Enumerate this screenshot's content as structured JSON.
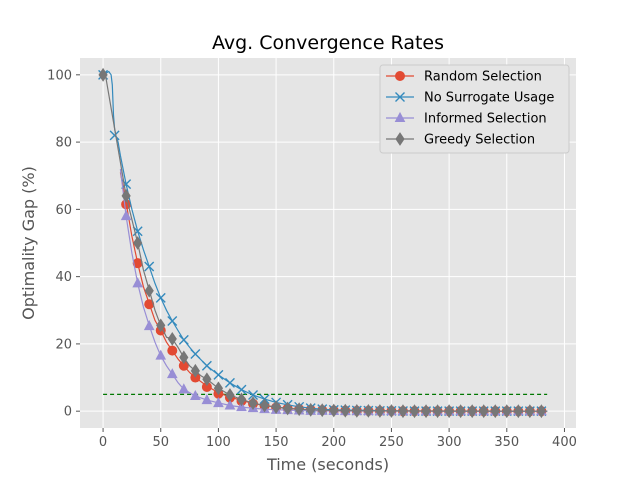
{
  "chart_data": {
    "type": "line",
    "title": "Avg. Convergence Rates",
    "xlabel": "Time (seconds)",
    "ylabel": "Optimality Gap (%)",
    "xlim": [
      -20,
      410
    ],
    "ylim": [
      -5,
      105
    ],
    "xticks": [
      0,
      50,
      100,
      150,
      200,
      250,
      300,
      350,
      400
    ],
    "yticks": [
      0,
      20,
      40,
      60,
      80,
      100
    ],
    "grid": true,
    "legend_position": "top-right",
    "threshold_line": {
      "y": 5,
      "x_range": [
        0,
        385
      ],
      "color": "#007700",
      "style": "dashed"
    },
    "series": [
      {
        "name": "Random Selection",
        "color": "#E24A33",
        "marker": "circle",
        "curve": [
          [
            15,
            71
          ],
          [
            20,
            62
          ],
          [
            25,
            52
          ],
          [
            30,
            44
          ],
          [
            35,
            37
          ],
          [
            40,
            32
          ],
          [
            45,
            27
          ],
          [
            50,
            24
          ],
          [
            55,
            20.5
          ],
          [
            60,
            18
          ],
          [
            65,
            15.5
          ],
          [
            70,
            13.5
          ],
          [
            75,
            11.5
          ],
          [
            80,
            10
          ],
          [
            90,
            7.5
          ],
          [
            100,
            5.5
          ],
          [
            110,
            4.2
          ],
          [
            120,
            3.2
          ],
          [
            130,
            2.3
          ],
          [
            140,
            1.7
          ],
          [
            150,
            1.2
          ],
          [
            160,
            0.9
          ],
          [
            170,
            0.6
          ],
          [
            180,
            0.4
          ],
          [
            190,
            0.3
          ],
          [
            200,
            0.2
          ],
          [
            250,
            0.1
          ],
          [
            300,
            0.05
          ],
          [
            385,
            0
          ]
        ],
        "marker_points": [
          [
            20,
            61.5
          ],
          [
            30,
            44
          ],
          [
            40,
            31.8
          ],
          [
            50,
            24
          ],
          [
            60,
            18
          ],
          [
            70,
            13.5
          ],
          [
            80,
            10
          ],
          [
            90,
            7.2
          ],
          [
            100,
            5.2
          ],
          [
            110,
            4
          ],
          [
            120,
            3
          ],
          [
            130,
            2.2
          ],
          [
            140,
            1.6
          ],
          [
            150,
            1.1
          ],
          [
            160,
            0.8
          ],
          [
            170,
            0.6
          ],
          [
            180,
            0.4
          ],
          [
            190,
            0.3
          ],
          [
            200,
            0.2
          ],
          [
            210,
            0.15
          ],
          [
            220,
            0.1
          ],
          [
            230,
            0.1
          ],
          [
            240,
            0.05
          ],
          [
            250,
            0.05
          ],
          [
            260,
            0
          ],
          [
            270,
            0
          ],
          [
            280,
            0
          ],
          [
            290,
            0
          ],
          [
            300,
            0
          ],
          [
            310,
            0
          ],
          [
            320,
            0
          ],
          [
            330,
            0
          ],
          [
            340,
            0
          ],
          [
            350,
            0
          ],
          [
            360,
            0
          ],
          [
            370,
            0
          ],
          [
            380,
            0
          ]
        ]
      },
      {
        "name": "No Surrogate Usage",
        "color": "#348ABD",
        "marker": "x",
        "curve": [
          [
            0,
            100
          ],
          [
            5,
            101
          ],
          [
            7,
            100
          ],
          [
            8,
            97
          ],
          [
            9,
            88
          ],
          [
            10,
            84
          ],
          [
            11,
            82
          ],
          [
            13,
            80
          ],
          [
            15,
            76
          ],
          [
            20,
            67.5
          ],
          [
            25,
            60
          ],
          [
            30,
            53.5
          ],
          [
            35,
            48
          ],
          [
            40,
            43
          ],
          [
            45,
            38
          ],
          [
            50,
            33.7
          ],
          [
            55,
            30
          ],
          [
            60,
            26.8
          ],
          [
            65,
            24
          ],
          [
            70,
            21.2
          ],
          [
            75,
            19
          ],
          [
            80,
            17
          ],
          [
            90,
            13.5
          ],
          [
            100,
            10.8
          ],
          [
            110,
            8.4
          ],
          [
            120,
            6.4
          ],
          [
            130,
            4.8
          ],
          [
            140,
            3.6
          ],
          [
            150,
            2.6
          ],
          [
            160,
            1.9
          ],
          [
            170,
            1.3
          ],
          [
            180,
            0.9
          ],
          [
            190,
            0.6
          ],
          [
            200,
            0.4
          ],
          [
            250,
            0.1
          ],
          [
            300,
            0
          ],
          [
            385,
            0
          ]
        ],
        "marker_points": [
          [
            0,
            100
          ],
          [
            10,
            82
          ],
          [
            20,
            67.5
          ],
          [
            30,
            53.5
          ],
          [
            40,
            43
          ],
          [
            50,
            33.7
          ],
          [
            60,
            26.8
          ],
          [
            70,
            21.2
          ],
          [
            80,
            17
          ],
          [
            90,
            13.5
          ],
          [
            100,
            10.8
          ],
          [
            110,
            8.4
          ],
          [
            120,
            6.4
          ],
          [
            130,
            4.8
          ],
          [
            140,
            3.6
          ],
          [
            150,
            2.6
          ],
          [
            160,
            1.9
          ],
          [
            170,
            1.3
          ],
          [
            180,
            0.9
          ],
          [
            190,
            0.6
          ],
          [
            200,
            0.4
          ],
          [
            210,
            0.3
          ],
          [
            220,
            0.2
          ],
          [
            230,
            0.15
          ],
          [
            240,
            0.1
          ],
          [
            250,
            0.1
          ],
          [
            260,
            0.05
          ],
          [
            270,
            0
          ],
          [
            280,
            0
          ],
          [
            290,
            0
          ],
          [
            300,
            0
          ],
          [
            310,
            0
          ],
          [
            320,
            0
          ],
          [
            330,
            0
          ],
          [
            340,
            0
          ],
          [
            350,
            0
          ],
          [
            360,
            0
          ],
          [
            370,
            0
          ],
          [
            380,
            0
          ]
        ]
      },
      {
        "name": "Informed Selection",
        "color": "#988ED5",
        "marker": "triangle",
        "curve": [
          [
            15,
            72
          ],
          [
            20,
            58
          ],
          [
            25,
            47
          ],
          [
            30,
            38
          ],
          [
            35,
            31
          ],
          [
            40,
            25.5
          ],
          [
            45,
            20.5
          ],
          [
            50,
            16.5
          ],
          [
            55,
            13.5
          ],
          [
            60,
            11
          ],
          [
            65,
            8.5
          ],
          [
            70,
            6.5
          ],
          [
            75,
            5.5
          ],
          [
            80,
            4.5
          ],
          [
            90,
            3.3
          ],
          [
            100,
            2.5
          ],
          [
            110,
            1.7
          ],
          [
            120,
            1.2
          ],
          [
            130,
            0.9
          ],
          [
            140,
            0.6
          ],
          [
            150,
            0.4
          ],
          [
            160,
            0.3
          ],
          [
            180,
            0.1
          ],
          [
            200,
            0.05
          ],
          [
            385,
            0
          ]
        ],
        "marker_points": [
          [
            20,
            58
          ],
          [
            30,
            38
          ],
          [
            40,
            25.3
          ],
          [
            50,
            16.5
          ],
          [
            60,
            11
          ],
          [
            70,
            6.5
          ],
          [
            80,
            4.5
          ],
          [
            90,
            3.3
          ],
          [
            100,
            2.4
          ],
          [
            110,
            1.7
          ],
          [
            120,
            1.2
          ],
          [
            130,
            0.9
          ],
          [
            140,
            0.6
          ],
          [
            150,
            0.4
          ],
          [
            160,
            0.3
          ],
          [
            170,
            0.2
          ],
          [
            180,
            0.1
          ],
          [
            190,
            0.1
          ],
          [
            200,
            0.05
          ],
          [
            210,
            0
          ],
          [
            220,
            0
          ],
          [
            230,
            0
          ],
          [
            240,
            0
          ],
          [
            250,
            0
          ],
          [
            260,
            0
          ],
          [
            270,
            0
          ],
          [
            280,
            0
          ],
          [
            290,
            0
          ],
          [
            300,
            0
          ],
          [
            310,
            0
          ],
          [
            320,
            0
          ],
          [
            330,
            0
          ],
          [
            340,
            0
          ],
          [
            350,
            0
          ],
          [
            360,
            0
          ],
          [
            370,
            0
          ],
          [
            380,
            0
          ]
        ]
      },
      {
        "name": "Greedy Selection",
        "color": "#777777",
        "marker": "diamond",
        "curve": [
          [
            0,
            100
          ],
          [
            2,
            100
          ],
          [
            15,
            74
          ],
          [
            20,
            64
          ],
          [
            25,
            57
          ],
          [
            30,
            50
          ],
          [
            35,
            42
          ],
          [
            40,
            36
          ],
          [
            45,
            30
          ],
          [
            50,
            25.5
          ],
          [
            55,
            22
          ],
          [
            60,
            21.5
          ],
          [
            65,
            19
          ],
          [
            70,
            16
          ],
          [
            75,
            13.5
          ],
          [
            80,
            12
          ],
          [
            85,
            10.5
          ],
          [
            90,
            9.5
          ],
          [
            100,
            6.8
          ],
          [
            110,
            4.8
          ],
          [
            120,
            3.5
          ],
          [
            130,
            2.4
          ],
          [
            140,
            1.7
          ],
          [
            150,
            1.2
          ],
          [
            160,
            0.8
          ],
          [
            170,
            0.6
          ],
          [
            180,
            0.4
          ],
          [
            200,
            0.2
          ],
          [
            250,
            0.05
          ],
          [
            385,
            0
          ]
        ],
        "marker_points": [
          [
            0,
            100
          ],
          [
            20,
            64
          ],
          [
            30,
            50
          ],
          [
            40,
            35.8
          ],
          [
            50,
            25.5
          ],
          [
            60,
            21.5
          ],
          [
            70,
            16
          ],
          [
            80,
            12
          ],
          [
            90,
            9.5
          ],
          [
            100,
            6.8
          ],
          [
            110,
            4.8
          ],
          [
            120,
            3.5
          ],
          [
            130,
            2.4
          ],
          [
            140,
            1.7
          ],
          [
            150,
            1.2
          ],
          [
            160,
            0.8
          ],
          [
            170,
            0.6
          ],
          [
            180,
            0.4
          ],
          [
            190,
            0.3
          ],
          [
            200,
            0.2
          ],
          [
            210,
            0.15
          ],
          [
            220,
            0.1
          ],
          [
            230,
            0.1
          ],
          [
            240,
            0.05
          ],
          [
            250,
            0.05
          ],
          [
            260,
            0
          ],
          [
            270,
            0
          ],
          [
            280,
            0
          ],
          [
            290,
            0
          ],
          [
            300,
            0
          ],
          [
            310,
            0
          ],
          [
            320,
            0
          ],
          [
            330,
            0
          ],
          [
            340,
            0
          ],
          [
            350,
            0
          ],
          [
            360,
            0
          ],
          [
            370,
            0
          ],
          [
            380,
            0
          ]
        ]
      }
    ]
  }
}
